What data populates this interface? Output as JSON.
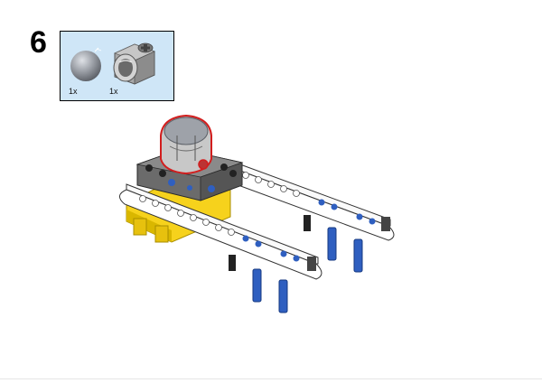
{
  "step": {
    "number": "6"
  },
  "parts": [
    {
      "name": "ball",
      "icon": "ball-joint-icon",
      "qty": "1x",
      "color": "#8c8f96"
    },
    {
      "name": "socket-connector",
      "icon": "socket-connector-icon",
      "qty": "1x",
      "color": "#9a9a9a"
    }
  ],
  "model": {
    "highlight_color": "#d21e1e",
    "beam_color": "#f4f4f4",
    "frame_color": "#6b6b6b",
    "base_color": "#f6d21c",
    "pin_color": "#2f5fc0"
  }
}
